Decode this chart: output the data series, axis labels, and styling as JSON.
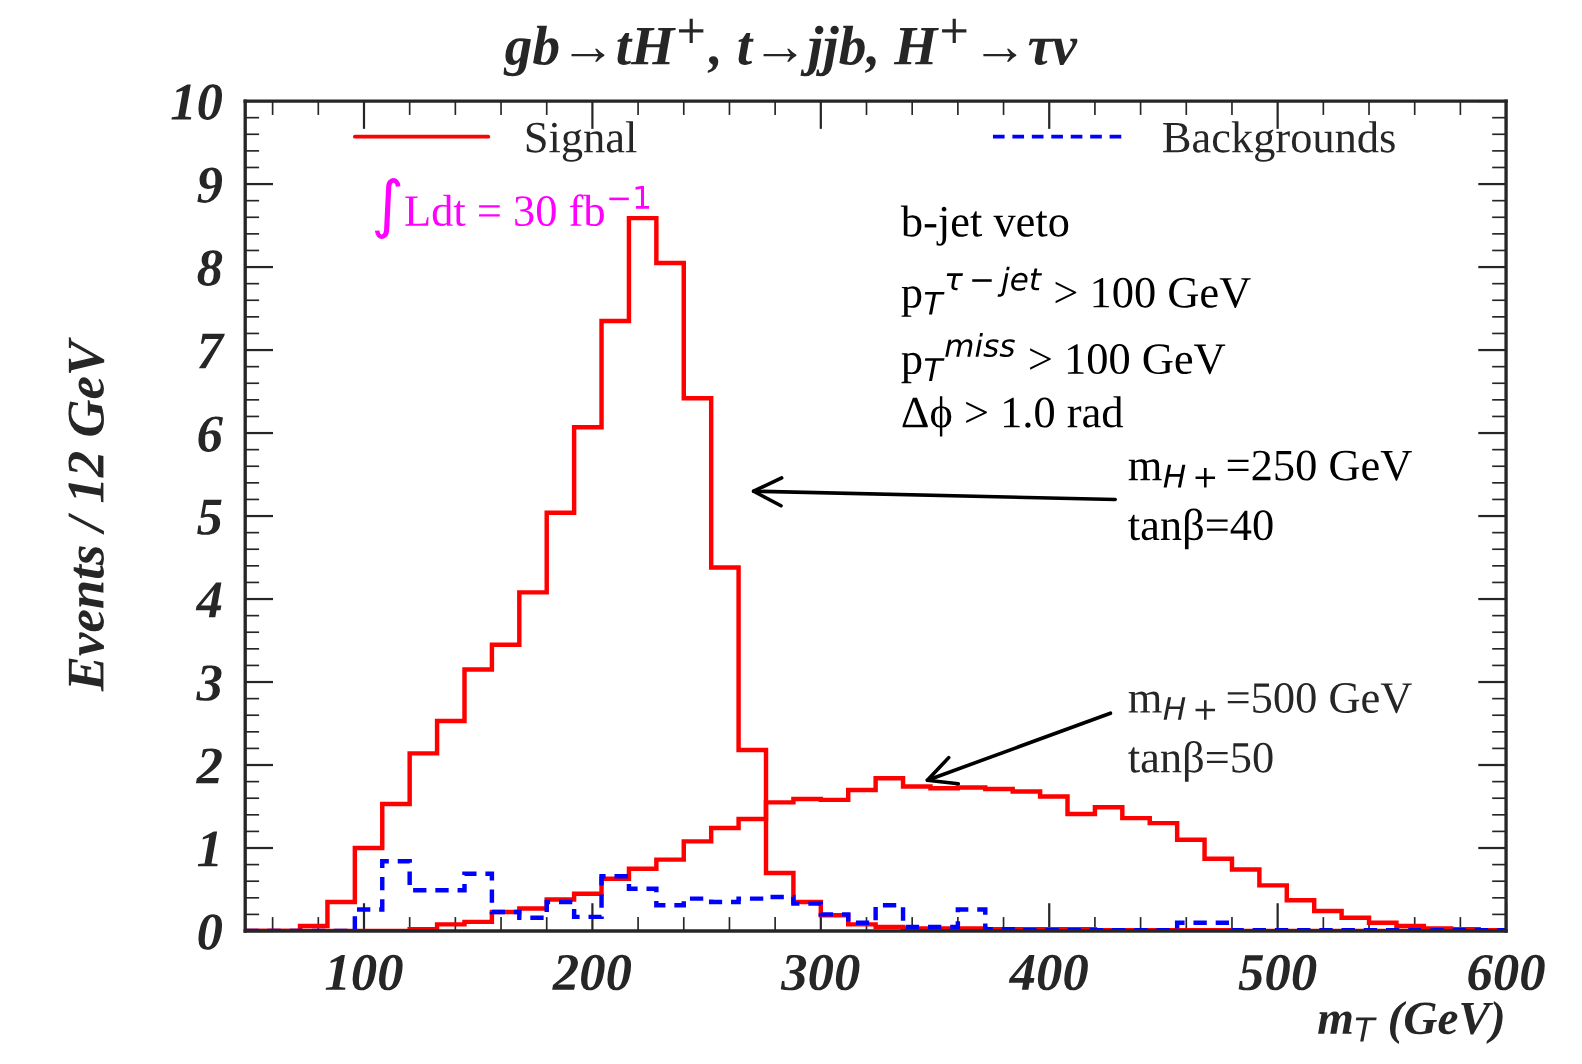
{
  "chart_data": {
    "type": "histogram",
    "title": "gb→tH$^{+}$, t→jjb, H$^{+}$→τν",
    "xlabel": "m$_{T}$ (GeV)",
    "ylabel": "Events / 12 GeV",
    "bins": [
      48,
      60,
      72,
      84,
      96,
      108,
      120,
      132,
      144,
      156,
      168,
      180,
      192,
      204,
      216,
      228,
      240,
      252,
      264,
      276,
      288,
      300,
      312,
      324,
      336,
      348,
      360,
      372,
      384,
      396,
      408,
      420,
      432,
      444,
      456,
      468,
      480,
      492,
      504,
      516,
      528,
      540,
      552,
      564,
      576,
      588,
      600
    ],
    "series": [
      {
        "name": "Signal",
        "color": "#ff0000",
        "line_style": "solid",
        "values": [
          0,
          0,
          0.06,
          0.35,
          1.0,
          1.53,
          2.14,
          2.53,
          3.15,
          3.45,
          4.08,
          5.04,
          6.07,
          7.35,
          8.59,
          8.05,
          6.42,
          4.38,
          2.18,
          0.7,
          0.35,
          0.19,
          0.08,
          0.05,
          0.03,
          0.03,
          0.03,
          0.02,
          0.02,
          0.02,
          0.02,
          0.01,
          0.01,
          0.01,
          0.01,
          0.01,
          0,
          0,
          0,
          0,
          0,
          0,
          0,
          0,
          0,
          0
        ]
      },
      {
        "color": "#ff0000",
        "line_style": "solid",
        "values": [
          0,
          0,
          0,
          0,
          0,
          0,
          0.02,
          0.08,
          0.11,
          0.23,
          0.27,
          0.38,
          0.45,
          0.63,
          0.75,
          0.86,
          1.08,
          1.24,
          1.35,
          1.55,
          1.59,
          1.58,
          1.7,
          1.84,
          1.74,
          1.72,
          1.73,
          1.71,
          1.68,
          1.62,
          1.41,
          1.49,
          1.36,
          1.3,
          1.1,
          0.87,
          0.74,
          0.55,
          0.37,
          0.24,
          0.16,
          0.1,
          0.06,
          0.03,
          0.02,
          0.01
        ]
      },
      {
        "name": "Backgrounds",
        "color": "#0000ff",
        "line_style": "dashed",
        "values": [
          0,
          0,
          0,
          0,
          0.26,
          0.84,
          0.49,
          0.49,
          0.69,
          0.23,
          0.16,
          0.35,
          0.17,
          0.66,
          0.51,
          0.31,
          0.39,
          0.35,
          0.39,
          0.41,
          0.33,
          0.2,
          0.1,
          0.31,
          0.05,
          0.05,
          0.26,
          0.02,
          0.01,
          0.01,
          0.01,
          0.01,
          0.01,
          0.01,
          0.1,
          0.1,
          0.01,
          0.01,
          0.01,
          0.01,
          0.01,
          0.01,
          0.01,
          0.01,
          0.01,
          0.01
        ]
      }
    ],
    "xlim": [
      48,
      600
    ],
    "xticks": [
      100,
      200,
      300,
      400,
      500,
      600
    ],
    "ylim": [
      0,
      10
    ],
    "yticks": [
      0,
      1,
      2,
      3,
      4,
      5,
      6,
      7,
      8,
      9,
      10
    ],
    "legend": "top",
    "grid": false,
    "annotations": [
      "∫Ldt = 30 fb$^{−1}$",
      "b-jet veto",
      "p$_{T}$$^{τ−jet}$ > 100 GeV",
      "p$_{T}$$^{miss}$ > 100 GeV",
      "Δϕ > 1.0 rad",
      "m$_{H+}$=250 GeV\ntanβ=40",
      {
        "text": "m$_{H+}$=500 GeV\ntanβ=50",
        "x": 345,
        "y": 1.8
      }
    ]
  }
}
